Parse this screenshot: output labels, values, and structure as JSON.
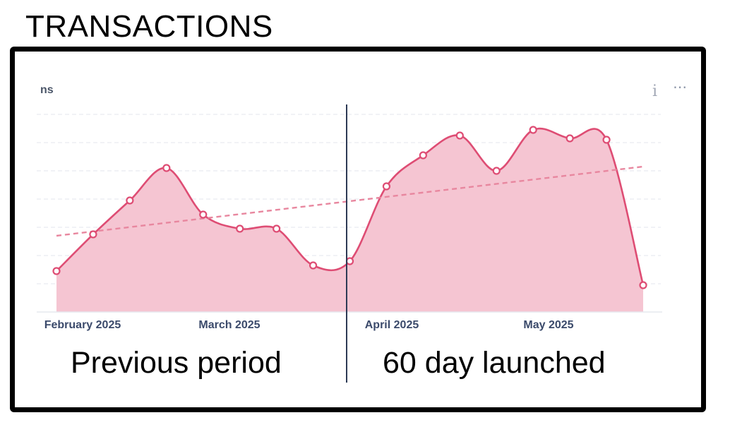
{
  "page_title": "TRANSACTIONS",
  "card": {
    "title": "ns",
    "info_icon": "info-icon",
    "more_icon": "more-options-icon"
  },
  "annotations": {
    "left_label": "Previous period",
    "right_label": "60 day launched"
  },
  "colors": {
    "line": "#de4d74",
    "fill": "#f5c5d2",
    "trend": "#e8879f",
    "divider": "#2d3a55",
    "grid": "#e3e6ec",
    "tick_text": "#3b4a6b"
  },
  "chart_data": {
    "type": "area",
    "title": "",
    "x_ticks": [
      "February 2025",
      "March 2025",
      "April 2025",
      "May 2025"
    ],
    "ylim": [
      0,
      7
    ],
    "grid": true,
    "series": [
      {
        "values": [
          1.45,
          2.75,
          3.95,
          5.1,
          3.45,
          2.95,
          2.95,
          1.65,
          1.8,
          4.45,
          5.55,
          6.25,
          5.0,
          6.45,
          6.15,
          6.1,
          0.95
        ]
      }
    ],
    "trendline": {
      "start": 2.7,
      "end": 5.15
    },
    "divider_after_index": 8
  }
}
